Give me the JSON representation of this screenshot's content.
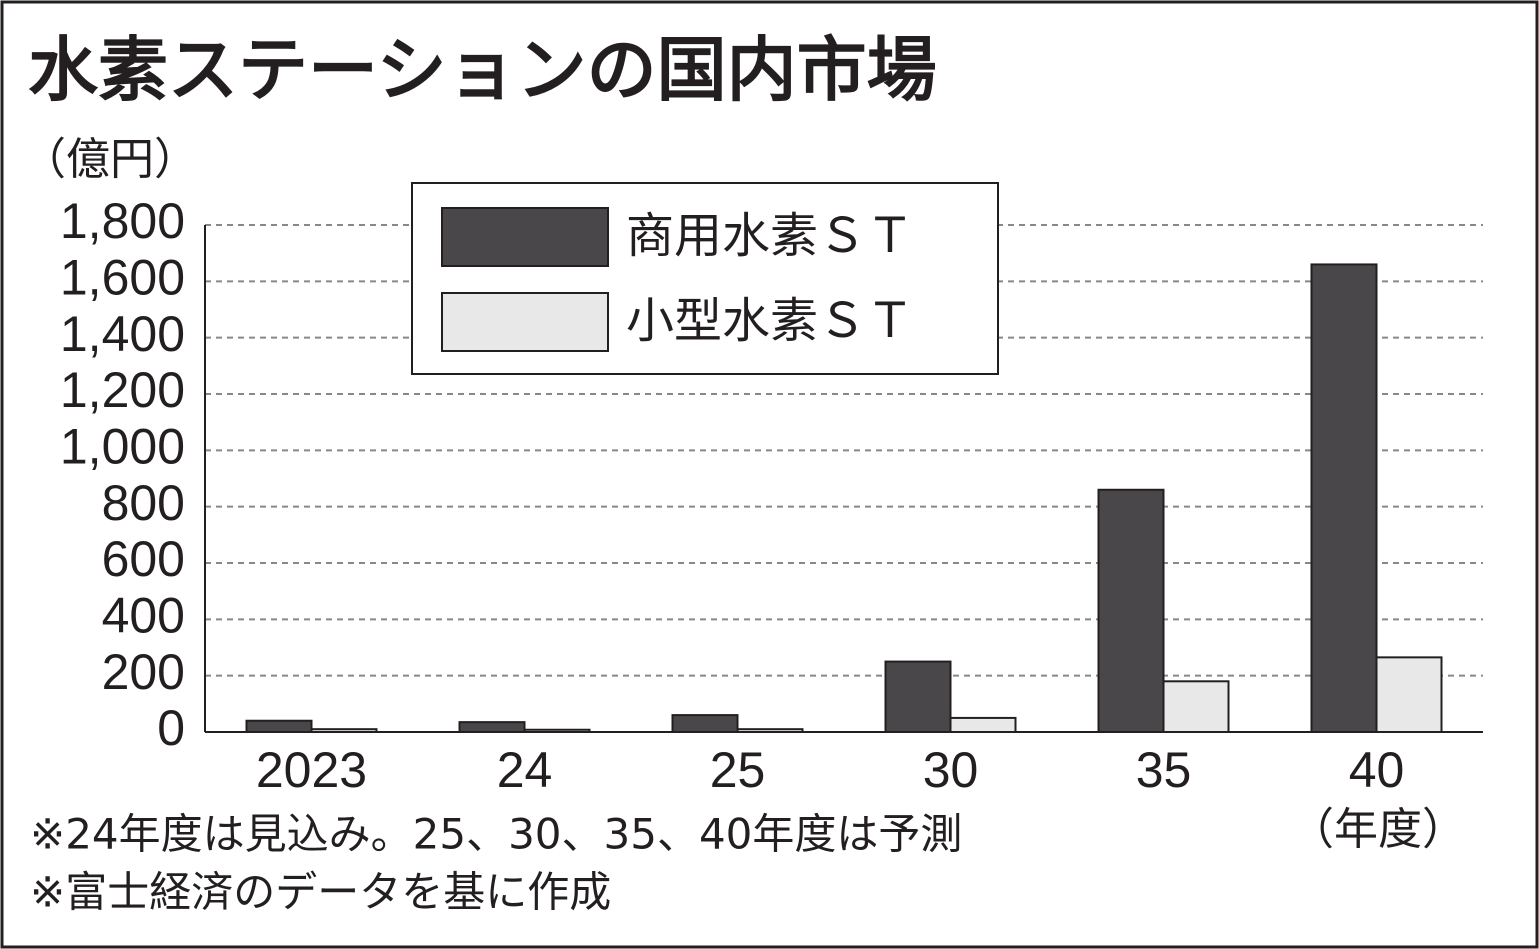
{
  "chart_data": {
    "type": "bar",
    "title": "水素ステーションの国内市場",
    "y_label": "（億円）",
    "x_label": "（年度）",
    "categories": [
      "2023",
      "24",
      "25",
      "30",
      "35",
      "40"
    ],
    "series": [
      {
        "name": "商用水素ＳＴ",
        "color": "#4a474a",
        "values": [
          40,
          35,
          60,
          250,
          860,
          1660
        ]
      },
      {
        "name": "小型水素ＳＴ",
        "color": "#e8e8e9",
        "values": [
          10,
          8,
          10,
          50,
          180,
          265
        ]
      }
    ],
    "ylim": [
      0,
      1800
    ],
    "yticks": [
      0,
      200,
      400,
      600,
      800,
      {
        "value": 1000,
        "label": "1,000"
      },
      {
        "value": 1200,
        "label": "1,200"
      },
      {
        "value": 1400,
        "label": "1,400"
      },
      {
        "value": 1600,
        "label": "1,600"
      },
      {
        "value": 1800,
        "label": "1,800"
      }
    ],
    "grid": true,
    "notes": [
      "※24年度は見込み。25、30、35、40年度は予測",
      "※富士経済のデータを基に作成"
    ]
  }
}
